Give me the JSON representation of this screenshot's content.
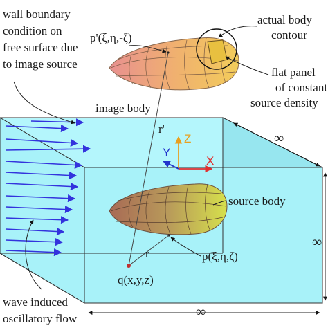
{
  "labels": {
    "wall_boundary": [
      "wall boundary",
      "condition on",
      "free surface due",
      "to image source"
    ],
    "image_point": "p'(ξ,η,-ζ)",
    "actual_body": [
      "actual body",
      "contour"
    ],
    "flat_panel": [
      "flat panel",
      "of constant",
      "source density"
    ],
    "image_body": "image body",
    "r_prime": "r'",
    "axis_z": "Z",
    "axis_y": "Y",
    "axis_x": "X",
    "source_body": "source body",
    "source_point": "p(ξ,η,ζ)",
    "r": "r",
    "field_point": "q(x,y,z)",
    "wave_flow": [
      "wave induced",
      "oscillatory flow"
    ],
    "infinity_depth": "∞",
    "infinity_width": "∞",
    "infinity_length": "∞"
  },
  "colors": {
    "water": "#aaf5fb",
    "water_side": "#8ee4ee",
    "flow_arrow": "#3333dd",
    "body_warm": "#e8a080",
    "body_yellow": "#f0d84a",
    "source_green": "#c8dc48",
    "source_brown": "#b9886a",
    "axis_x": "#e03030",
    "axis_y": "#2233cc",
    "axis_z": "#e8a020",
    "point": "#c03030"
  }
}
